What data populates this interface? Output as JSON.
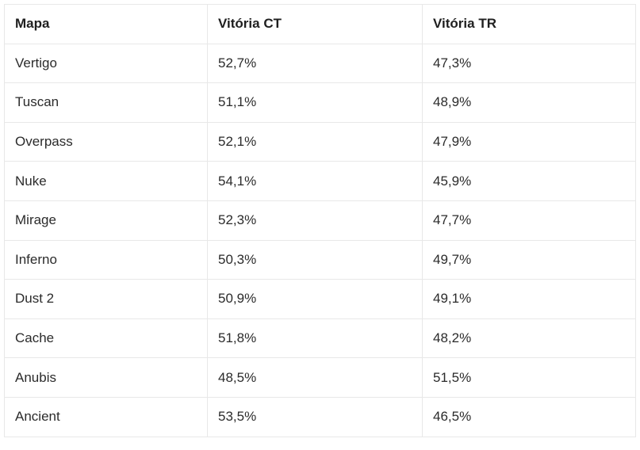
{
  "table": {
    "headers": [
      "Mapa",
      "Vitória CT",
      "Vitória TR"
    ],
    "rows": [
      [
        "Vertigo",
        "52,7%",
        "47,3%"
      ],
      [
        "Tuscan",
        "51,1%",
        "48,9%"
      ],
      [
        "Overpass",
        "52,1%",
        "47,9%"
      ],
      [
        "Nuke",
        "54,1%",
        "45,9%"
      ],
      [
        "Mirage",
        "52,3%",
        "47,7%"
      ],
      [
        "Inferno",
        "50,3%",
        "49,7%"
      ],
      [
        "Dust 2",
        "50,9%",
        "49,1%"
      ],
      [
        "Cache",
        "51,8%",
        "48,2%"
      ],
      [
        "Anubis",
        "48,5%",
        "51,5%"
      ],
      [
        "Ancient",
        "53,5%",
        "46,5%"
      ]
    ]
  }
}
